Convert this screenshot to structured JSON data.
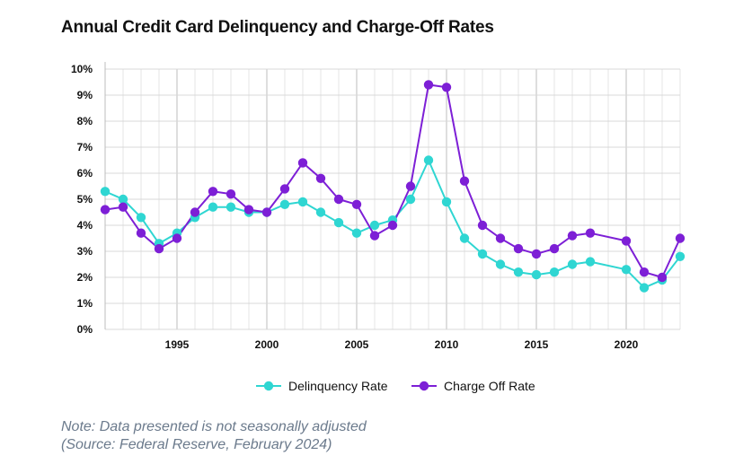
{
  "chart_data": {
    "type": "line",
    "title": "Annual Credit Card Delinquency and Charge-Off Rates",
    "xlabel": "",
    "ylabel": "",
    "xlim": [
      1991,
      2023
    ],
    "ylim": [
      0,
      10
    ],
    "x_ticks": [
      1995,
      2000,
      2005,
      2010,
      2015,
      2020
    ],
    "y_ticks": [
      "0%",
      "1%",
      "2%",
      "3%",
      "4%",
      "5%",
      "6%",
      "7%",
      "8%",
      "9%",
      "10%"
    ],
    "grid": true,
    "legend_position": "bottom-center",
    "series": [
      {
        "name": "Delinquency Rate",
        "color": "#2fd6d2",
        "points": [
          [
            1991,
            5.3
          ],
          [
            1992,
            5.0
          ],
          [
            1993,
            4.3
          ],
          [
            1994,
            3.3
          ],
          [
            1995,
            3.7
          ],
          [
            1996,
            4.3
          ],
          [
            1997,
            4.7
          ],
          [
            1998,
            4.7
          ],
          [
            1999,
            4.5
          ],
          [
            2000,
            4.5
          ],
          [
            2001,
            4.8
          ],
          [
            2002,
            4.9
          ],
          [
            2003,
            4.5
          ],
          [
            2004,
            4.1
          ],
          [
            2005,
            3.7
          ],
          [
            2006,
            4.0
          ],
          [
            2007,
            4.2
          ],
          [
            2008,
            5.0
          ],
          [
            2009,
            6.5
          ],
          [
            2010,
            4.9
          ],
          [
            2011,
            3.5
          ],
          [
            2012,
            2.9
          ],
          [
            2013,
            2.5
          ],
          [
            2014,
            2.2
          ],
          [
            2015,
            2.1
          ],
          [
            2016,
            2.2
          ],
          [
            2017,
            2.5
          ],
          [
            2018,
            2.6
          ],
          [
            2020,
            2.3
          ],
          [
            2021,
            1.6
          ],
          [
            2022,
            1.9
          ],
          [
            2023,
            2.8
          ]
        ]
      },
      {
        "name": "Charge Off Rate",
        "color": "#7d1fd6",
        "points": [
          [
            1991,
            4.6
          ],
          [
            1992,
            4.7
          ],
          [
            1993,
            3.7
          ],
          [
            1994,
            3.1
          ],
          [
            1995,
            3.5
          ],
          [
            1996,
            4.5
          ],
          [
            1997,
            5.3
          ],
          [
            1998,
            5.2
          ],
          [
            1999,
            4.6
          ],
          [
            2000,
            4.5
          ],
          [
            2001,
            5.4
          ],
          [
            2002,
            6.4
          ],
          [
            2003,
            5.8
          ],
          [
            2004,
            5.0
          ],
          [
            2005,
            4.8
          ],
          [
            2006,
            3.6
          ],
          [
            2007,
            4.0
          ],
          [
            2008,
            5.5
          ],
          [
            2009,
            9.4
          ],
          [
            2010,
            9.3
          ],
          [
            2011,
            5.7
          ],
          [
            2012,
            4.0
          ],
          [
            2013,
            3.5
          ],
          [
            2014,
            3.1
          ],
          [
            2015,
            2.9
          ],
          [
            2016,
            3.1
          ],
          [
            2017,
            3.6
          ],
          [
            2018,
            3.7
          ],
          [
            2020,
            3.4
          ],
          [
            2021,
            2.2
          ],
          [
            2022,
            2.0
          ],
          [
            2023,
            3.5
          ]
        ]
      }
    ]
  },
  "notes": {
    "line1": "Note: Data presented is not seasonally adjusted",
    "line2": "(Source: Federal Reserve, February 2024)"
  }
}
